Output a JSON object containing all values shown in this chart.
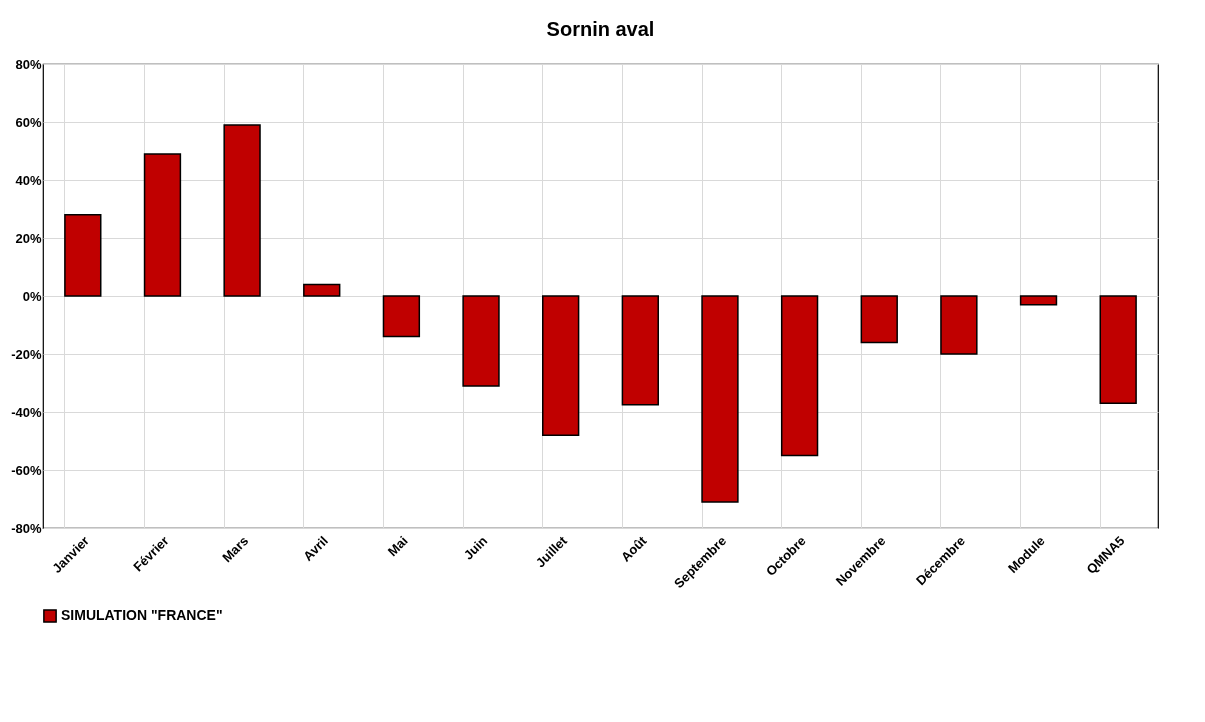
{
  "chart_data": {
    "type": "bar",
    "title": "Sornin aval",
    "categories": [
      "Janvier",
      "Février",
      "Mars",
      "Avril",
      "Mai",
      "Juin",
      "Juillet",
      "Août",
      "Septembre",
      "Octobre",
      "Novembre",
      "Décembre",
      "Module",
      "QMNA5"
    ],
    "series": [
      {
        "name": "SIMULATION \"FRANCE\"",
        "color": "#c00000",
        "values": [
          28,
          49,
          59,
          4,
          -14,
          -31,
          -48,
          -37.5,
          -71,
          -55,
          -16,
          -20,
          -3,
          -37
        ]
      }
    ],
    "ylim": [
      -80,
      80
    ],
    "yticks": [
      {
        "value": -80,
        "label": "-80%"
      },
      {
        "value": -60,
        "label": "-60%"
      },
      {
        "value": -40,
        "label": "-40%"
      },
      {
        "value": -20,
        "label": "-20%"
      },
      {
        "value": 0,
        "label": "0%"
      },
      {
        "value": 20,
        "label": "20%"
      },
      {
        "value": 40,
        "label": "40%"
      },
      {
        "value": 60,
        "label": "60%"
      },
      {
        "value": 80,
        "label": "80%"
      }
    ],
    "grid": true,
    "legend": "bottom"
  }
}
